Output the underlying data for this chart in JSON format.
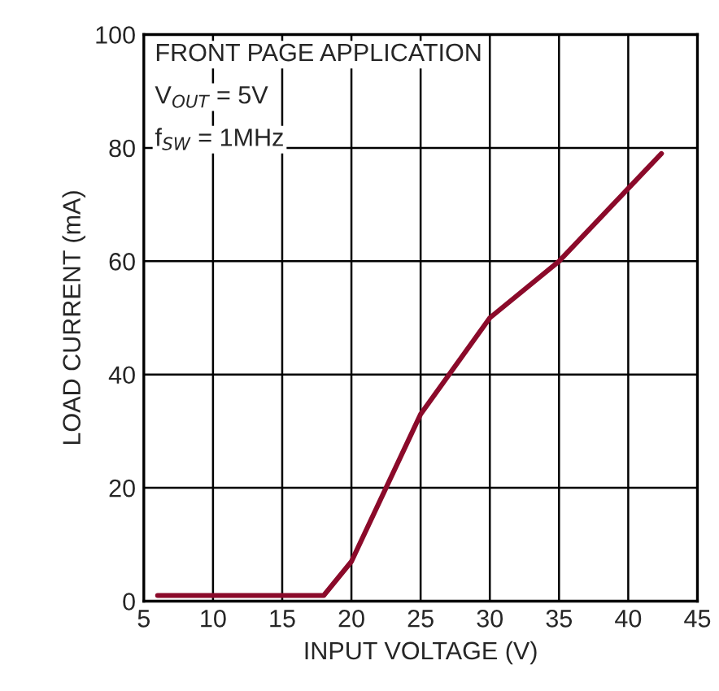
{
  "chart_data": {
    "type": "line",
    "xlabel": "INPUT VOLTAGE (V)",
    "ylabel": "LOAD CURRENT (mA)",
    "annotations": [
      "FRONT PAGE APPLICATION",
      "V$_{OUT}$ = 5V",
      "f$_{SW}$ = 1MHz"
    ],
    "series": [
      {
        "color": "#8b0a2a",
        "x": [
          6,
          18,
          20,
          25,
          30,
          35,
          42.4
        ],
        "values": [
          1,
          1,
          7,
          33,
          50,
          60,
          79
        ]
      }
    ],
    "xlim": [
      5,
      45
    ],
    "xticks": [
      5,
      10,
      15,
      20,
      25,
      30,
      35,
      40,
      45
    ],
    "ylim": [
      0,
      100
    ],
    "yticks": [
      0,
      20,
      40,
      60,
      80,
      100
    ],
    "grid": true,
    "marker": "none",
    "line_style": "solid",
    "legend": false
  }
}
